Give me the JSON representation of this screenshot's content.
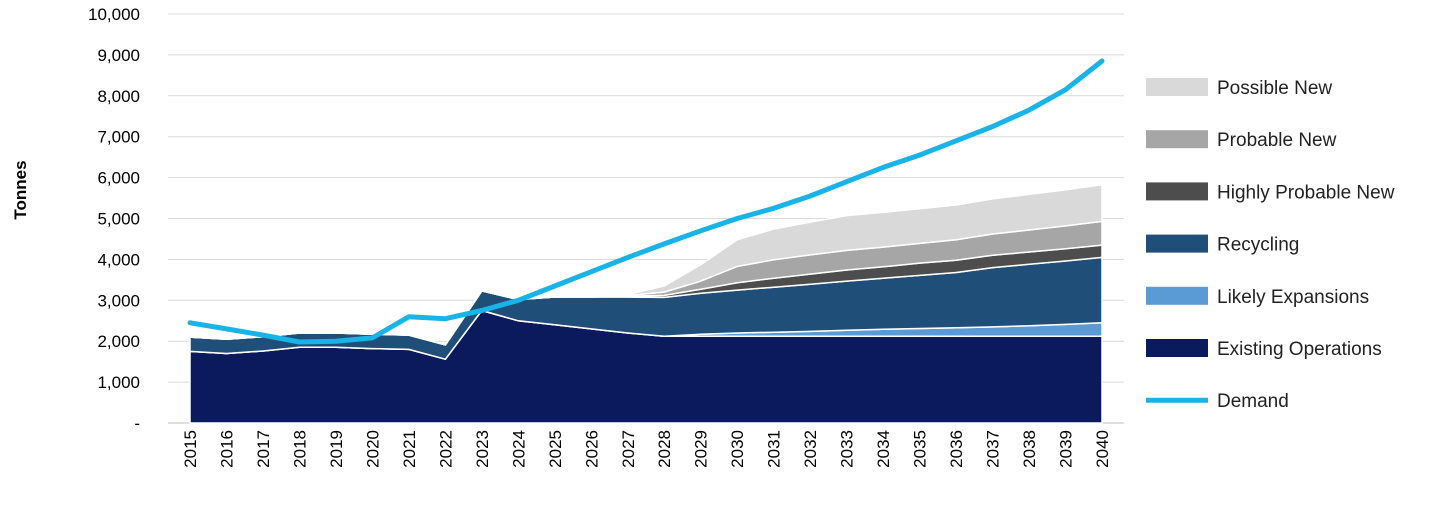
{
  "chart_data": {
    "type": "area",
    "title": "",
    "xlabel": "",
    "ylabel": "Tonnes",
    "ylim": [
      0,
      10000
    ],
    "yticks": [
      0,
      1000,
      2000,
      3000,
      4000,
      5000,
      6000,
      7000,
      8000,
      9000,
      10000
    ],
    "ytick_labels": [
      "-",
      "1,000",
      "2,000",
      "3,000",
      "4,000",
      "5,000",
      "6,000",
      "7,000",
      "8,000",
      "9,000",
      "10,000"
    ],
    "grid": "horizontal",
    "legend_position": "right",
    "x": [
      "2015",
      "2016",
      "2017",
      "2018",
      "2019",
      "2020",
      "2021",
      "2022",
      "2023",
      "2024",
      "2025",
      "2026",
      "2027",
      "2028",
      "2029",
      "2030",
      "2031",
      "2032",
      "2033",
      "2034",
      "2035",
      "2036",
      "2037",
      "2038",
      "2039",
      "2040"
    ],
    "stacked_series": [
      {
        "name": "Existing Operations",
        "color": "#0a1a5c",
        "values": [
          1750,
          1700,
          1760,
          1850,
          1850,
          1820,
          1800,
          1560,
          2750,
          2500,
          2400,
          2300,
          2200,
          2120,
          2120,
          2120,
          2120,
          2120,
          2120,
          2120,
          2120,
          2120,
          2120,
          2120,
          2120,
          2120
        ]
      },
      {
        "name": "Likely Expansions",
        "color": "#5b9bd5",
        "values": [
          0,
          0,
          0,
          0,
          0,
          0,
          0,
          0,
          0,
          0,
          0,
          0,
          0,
          0,
          50,
          80,
          100,
          120,
          150,
          170,
          190,
          210,
          230,
          260,
          290,
          330
        ]
      },
      {
        "name": "Recycling",
        "color": "#1f4e79",
        "values": [
          350,
          350,
          350,
          350,
          350,
          350,
          350,
          350,
          480,
          520,
          680,
          780,
          880,
          950,
          1000,
          1050,
          1100,
          1150,
          1200,
          1250,
          1300,
          1350,
          1450,
          1500,
          1550,
          1600
        ]
      },
      {
        "name": "Highly Probable New",
        "color": "#4d4d4d",
        "values": [
          0,
          0,
          0,
          0,
          0,
          0,
          0,
          0,
          0,
          0,
          0,
          0,
          20,
          50,
          100,
          180,
          220,
          250,
          270,
          280,
          300,
          300,
          300,
          300,
          300,
          300
        ]
      },
      {
        "name": "Probable New",
        "color": "#a6a6a6",
        "values": [
          0,
          0,
          0,
          0,
          0,
          0,
          0,
          0,
          0,
          0,
          0,
          0,
          20,
          80,
          200,
          400,
          450,
          470,
          480,
          480,
          480,
          500,
          520,
          540,
          560,
          580
        ]
      },
      {
        "name": "Possible New",
        "color": "#d9d9d9",
        "values": [
          0,
          0,
          0,
          0,
          0,
          0,
          0,
          0,
          0,
          0,
          0,
          0,
          20,
          150,
          400,
          650,
          750,
          800,
          850,
          850,
          850,
          850,
          860,
          870,
          880,
          900
        ]
      }
    ],
    "line_series": [
      {
        "name": "Demand",
        "color": "#18b4e8",
        "values": [
          2450,
          2300,
          2150,
          1980,
          2000,
          2080,
          2600,
          2550,
          2750,
          3000,
          3350,
          3700,
          4050,
          4380,
          4700,
          5000,
          5250,
          5550,
          5900,
          6250,
          6550,
          6900,
          7250,
          7650,
          8150,
          8850
        ]
      }
    ],
    "legend": [
      {
        "label": "Possible New",
        "color": "#d9d9d9",
        "kind": "area"
      },
      {
        "label": "Probable New",
        "color": "#a6a6a6",
        "kind": "area"
      },
      {
        "label": "Highly Probable New",
        "color": "#4d4d4d",
        "kind": "area"
      },
      {
        "label": "Recycling",
        "color": "#1f4e79",
        "kind": "area"
      },
      {
        "label": "Likely Expansions",
        "color": "#5b9bd5",
        "kind": "area"
      },
      {
        "label": "Existing Operations",
        "color": "#0a1a5c",
        "kind": "area"
      },
      {
        "label": "Demand",
        "color": "#18b4e8",
        "kind": "line"
      }
    ]
  }
}
